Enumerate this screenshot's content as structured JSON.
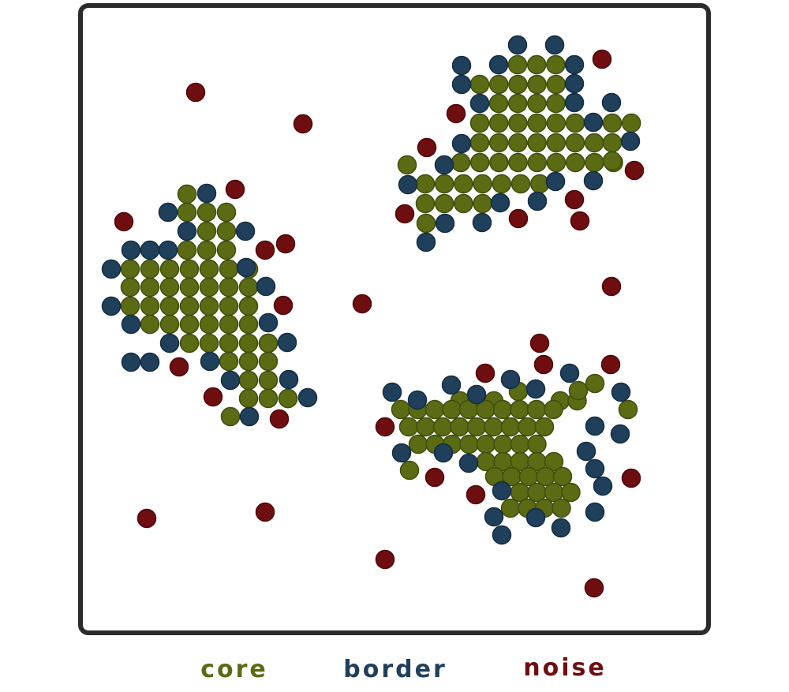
{
  "colors": {
    "core": "#5a6b14",
    "core_stroke": "#3e4d0c",
    "border": "#1f3f5a",
    "border_stroke": "#142c40",
    "noise": "#6e0e10",
    "noise_stroke": "#4e0709",
    "frame": "#2b2b2b"
  },
  "legend": {
    "core": "core",
    "border": "border",
    "noise": "noise"
  }
}
